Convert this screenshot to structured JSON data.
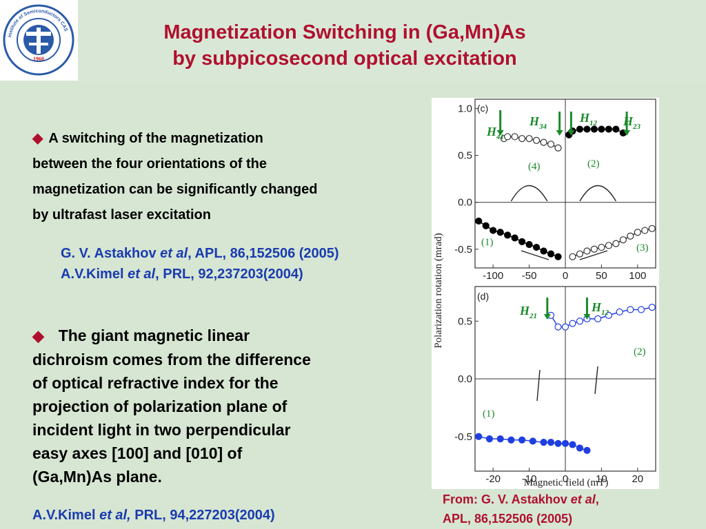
{
  "title": {
    "line1": "Magnetization Switching in (Ga,Mn)As",
    "line2": "by subpicosecond optical excitation"
  },
  "logo": {
    "text": "Institute of Semiconductors CAS",
    "year": "1960"
  },
  "bullet1": {
    "lines": [
      "A switching of the magnetization",
      "between the four orientations of the",
      "magnetization can be significantly changed",
      "by ultrafast laser excitation"
    ]
  },
  "ref1": {
    "author": "G. V. Astakhov ",
    "etal": "et al",
    "citation": ", APL, 86,152506 (2005)"
  },
  "ref2": {
    "author": "A.V.Kimel ",
    "etal": "et al",
    "citation": ", PRL, 92,237203(2004)"
  },
  "bullet2": {
    "lines": [
      "  The giant magnetic linear",
      "dichroism comes from the difference",
      "of optical refractive index for the",
      "projection of polarization plane of",
      "incident light in two perpendicular",
      "easy axes [100] and [010] of",
      "(Ga,Mn)As plane."
    ]
  },
  "ref3": {
    "author": "A.V.Kimel ",
    "etal": "et al,",
    "citation": " PRL, 94,227203(2004)"
  },
  "source": {
    "line1_prefix": "From: G. V. Astakhov ",
    "line1_etal": "et al",
    "line1_suffix": ",",
    "line2": "APL, 86,152506 (2005)"
  },
  "colors": {
    "title": "#b01030",
    "ref": "#1a3bb0",
    "fieldArrow": "#1a8a2a",
    "blueData": "#1f3fe0",
    "background": "#d6e6d2"
  },
  "figure": {
    "ylabel": "Polarization rotation (mrad)",
    "xlabel": "Magnetic field (mT)",
    "panel_c": {
      "label": "(c)",
      "xticks": [
        "-100",
        "-50",
        "0",
        "50",
        "100"
      ],
      "yticks": [
        "1.0",
        "0.5",
        "0.0",
        "-0.5"
      ],
      "field_labels": [
        "H41",
        "H34",
        "H12",
        "H23"
      ],
      "curve_labels": [
        "(1)",
        "(2)",
        "(3)",
        "(4)"
      ]
    },
    "panel_d": {
      "label": "(d)",
      "xticks": [
        "-20",
        "-10",
        "0",
        "10",
        "20"
      ],
      "yticks": [
        "0.5",
        "0.0",
        "-0.5"
      ],
      "field_labels": [
        "H21",
        "H12"
      ],
      "curve_labels": [
        "(1)",
        "(2)"
      ]
    }
  },
  "chart_data": [
    {
      "type": "scatter",
      "title": "(c)",
      "xlabel": "Magnetic field (mT)",
      "ylabel": "Polarization rotation (mrad)",
      "xlim": [
        -125,
        125
      ],
      "ylim": [
        -0.7,
        1.1
      ],
      "series": [
        {
          "name": "(1)",
          "x": [
            -120,
            -110,
            -100,
            -90,
            -80,
            -70,
            -60,
            -50,
            -40,
            -30,
            -20,
            -10
          ],
          "y": [
            -0.2,
            -0.25,
            -0.3,
            -0.32,
            -0.35,
            -0.38,
            -0.42,
            -0.45,
            -0.48,
            -0.52,
            -0.55,
            -0.58
          ]
        },
        {
          "name": "(4)",
          "x": [
            -85,
            -80,
            -70,
            -60,
            -50,
            -40,
            -30,
            -20,
            -10
          ],
          "y": [
            0.68,
            0.7,
            0.7,
            0.68,
            0.68,
            0.66,
            0.64,
            0.62,
            0.58
          ]
        },
        {
          "name": "(2)",
          "x": [
            5,
            10,
            20,
            30,
            40,
            50,
            60,
            70,
            80
          ],
          "y": [
            0.72,
            0.76,
            0.78,
            0.78,
            0.78,
            0.78,
            0.78,
            0.78,
            0.74
          ]
        },
        {
          "name": "(3)",
          "x": [
            10,
            20,
            30,
            40,
            50,
            60,
            70,
            80,
            90,
            100,
            110,
            120
          ],
          "y": [
            -0.58,
            -0.55,
            -0.52,
            -0.5,
            -0.48,
            -0.46,
            -0.44,
            -0.4,
            -0.36,
            -0.32,
            -0.3,
            -0.28
          ]
        }
      ]
    },
    {
      "type": "scatter",
      "title": "(d)",
      "xlabel": "Magnetic field (mT)",
      "ylabel": "Polarization rotation (mrad)",
      "xlim": [
        -25,
        25
      ],
      "ylim": [
        -0.8,
        0.8
      ],
      "series": [
        {
          "name": "(1)",
          "x": [
            -24,
            -21,
            -18,
            -15,
            -12,
            -9,
            -6,
            -4,
            -2,
            0,
            2,
            4,
            6
          ],
          "y": [
            -0.5,
            -0.52,
            -0.52,
            -0.53,
            -0.53,
            -0.54,
            -0.55,
            -0.55,
            -0.56,
            -0.56,
            -0.57,
            -0.6,
            -0.62
          ]
        },
        {
          "name": "(2)",
          "x": [
            -4,
            -2,
            0,
            2,
            4,
            6,
            9,
            12,
            15,
            18,
            21,
            24
          ],
          "y": [
            0.55,
            0.45,
            0.45,
            0.48,
            0.5,
            0.52,
            0.52,
            0.55,
            0.58,
            0.6,
            0.6,
            0.62
          ]
        }
      ]
    }
  ]
}
